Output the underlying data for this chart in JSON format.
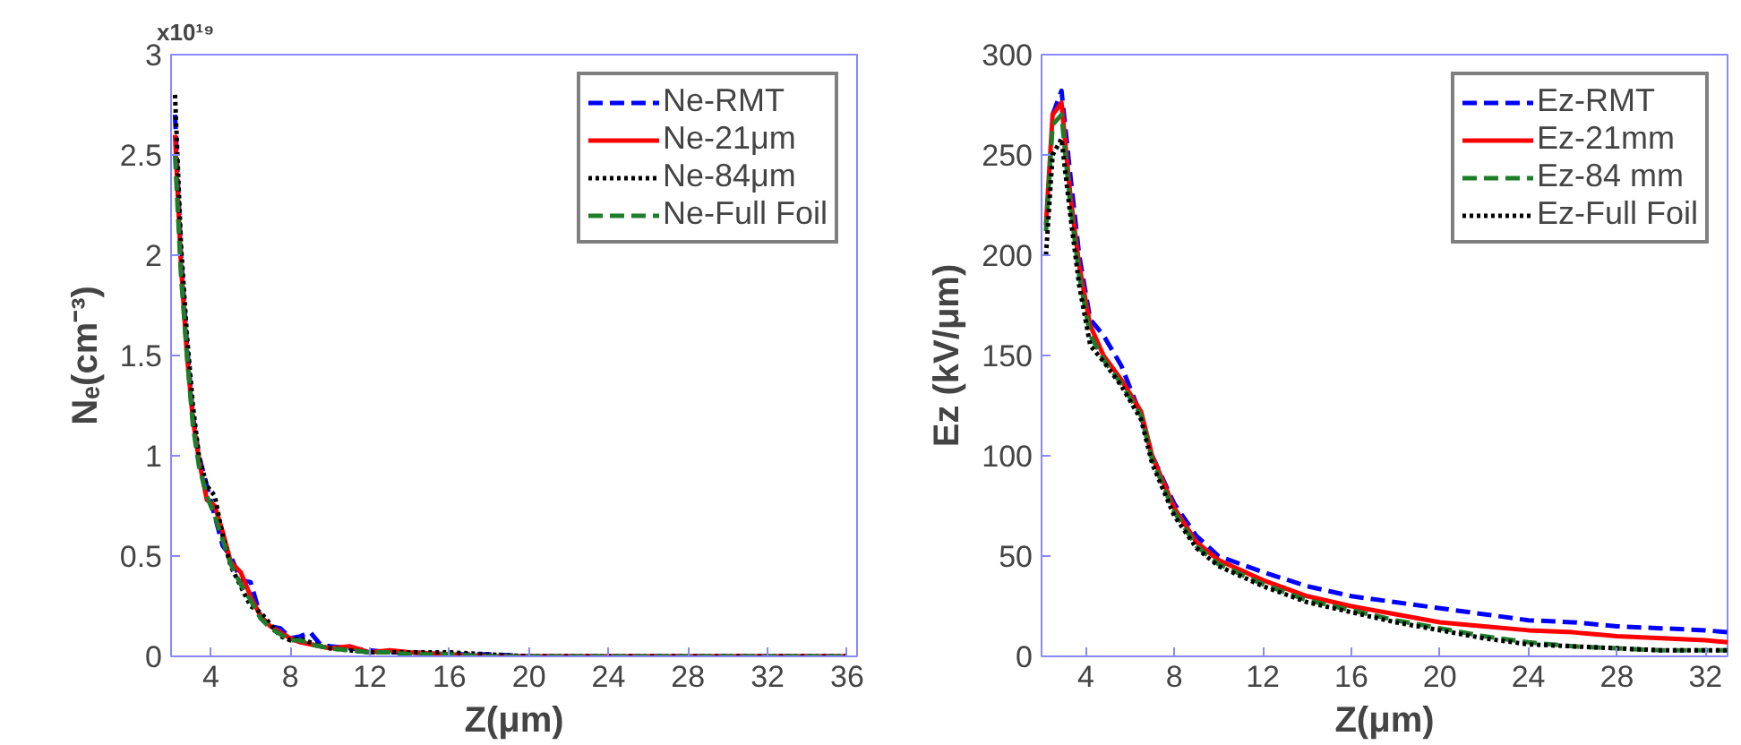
{
  "chart_data": [
    {
      "type": "line",
      "xlabel": "Z(μm)",
      "ylabel": "Nₑ(cm⁻³)",
      "annotations": [
        "x10¹⁹"
      ],
      "xlim": [
        2,
        36.5
      ],
      "xticks": [
        4,
        8,
        12,
        16,
        20,
        24,
        28,
        32,
        36
      ],
      "ylim": [
        0,
        3
      ],
      "yticks": [
        0,
        0.5,
        1,
        1.5,
        2,
        2.5,
        3
      ],
      "grid": false,
      "legend": "top right",
      "x": [
        2.2,
        2.5,
        2.8,
        3.1,
        3.4,
        3.8,
        4.2,
        4.6,
        5.0,
        5.5,
        6.0,
        6.5,
        7.0,
        7.5,
        8.0,
        8.5,
        9.0,
        9.5,
        10.0,
        11.0,
        12.0,
        13.0,
        14.0,
        16.0,
        18.0,
        20.0,
        24.0,
        28.0,
        32.0,
        36.0
      ],
      "series": [
        {
          "name": "Ne-RMT",
          "color": "#0000ff",
          "line_style": "dashed",
          "values": [
            2.7,
            2.0,
            1.55,
            1.2,
            1.0,
            0.85,
            0.7,
            0.55,
            0.5,
            0.38,
            0.37,
            0.2,
            0.15,
            0.14,
            0.09,
            0.1,
            0.12,
            0.06,
            0.05,
            0.04,
            0.03,
            0.02,
            0.02,
            0.01,
            0.01,
            0,
            0,
            0,
            0,
            0
          ]
        },
        {
          "name": "Ne-21μm",
          "color": "#ff0000",
          "line_style": "solid",
          "values": [
            2.6,
            1.95,
            1.5,
            1.18,
            0.98,
            0.78,
            0.75,
            0.62,
            0.47,
            0.42,
            0.3,
            0.2,
            0.15,
            0.12,
            0.09,
            0.07,
            0.06,
            0.05,
            0.04,
            0.05,
            0.02,
            0.03,
            0.02,
            0.01,
            0,
            0,
            0,
            0,
            0,
            0
          ]
        },
        {
          "name": "Ne-84μm",
          "color": "#000000",
          "line_style": "dotted",
          "values": [
            2.8,
            2.05,
            1.6,
            1.25,
            1.0,
            0.85,
            0.8,
            0.6,
            0.45,
            0.35,
            0.25,
            0.22,
            0.16,
            0.1,
            0.08,
            0.09,
            0.07,
            0.05,
            0.04,
            0.03,
            0.02,
            0.02,
            0.02,
            0.02,
            0.01,
            0,
            0,
            0,
            0,
            0
          ]
        },
        {
          "name": "Ne-Full Foil",
          "color": "#1e7d2a",
          "line_style": "dashed",
          "values": [
            2.5,
            1.9,
            1.5,
            1.15,
            0.95,
            0.8,
            0.7,
            0.58,
            0.46,
            0.36,
            0.28,
            0.19,
            0.14,
            0.11,
            0.08,
            0.08,
            0.06,
            0.05,
            0.04,
            0.03,
            0.02,
            0.02,
            0.01,
            0.01,
            0,
            0,
            0,
            0,
            0,
            0
          ]
        }
      ]
    },
    {
      "type": "line",
      "xlabel": "Z(μm)",
      "ylabel": "Ez (kV/μm)",
      "xlim": [
        2,
        33
      ],
      "xticks": [
        4,
        8,
        12,
        16,
        20,
        24,
        28,
        32
      ],
      "ylim": [
        0,
        300
      ],
      "yticks": [
        0,
        50,
        100,
        150,
        200,
        250,
        300
      ],
      "grid": false,
      "legend": "top right",
      "x": [
        2.2,
        2.5,
        2.9,
        3.3,
        3.7,
        4.2,
        4.8,
        5.6,
        6.5,
        7.0,
        8.0,
        9.0,
        10.0,
        12.0,
        14.0,
        16.0,
        18.0,
        20.0,
        22.0,
        24.0,
        26.0,
        28.0,
        30.0,
        32.0,
        33.0
      ],
      "series": [
        {
          "name": "Ez-RMT",
          "color": "#0000ff",
          "line_style": "dashed",
          "values": [
            null,
            270,
            282,
            240,
            200,
            168,
            160,
            145,
            120,
            100,
            76,
            60,
            50,
            42,
            35,
            30,
            27,
            24,
            21,
            18,
            17,
            15,
            14,
            13,
            12
          ]
        },
        {
          "name": "Ez-21mm",
          "color": "#ff0000",
          "line_style": "solid",
          "values": [
            215,
            270,
            276,
            230,
            195,
            165,
            150,
            138,
            122,
            100,
            74,
            57,
            48,
            38,
            30,
            25,
            21,
            17,
            15,
            13,
            12,
            10,
            9,
            8,
            7
          ]
        },
        {
          "name": "Ez-84 mm",
          "color": "#1e7d2a",
          "line_style": "dashed",
          "values": [
            212,
            265,
            270,
            225,
            190,
            160,
            148,
            136,
            120,
            98,
            72,
            55,
            46,
            36,
            28,
            23,
            18,
            14,
            10,
            7,
            5,
            4,
            3,
            3,
            3
          ]
        },
        {
          "name": "Ez-Full Foil",
          "color": "#000000",
          "line_style": "dotted",
          "values": [
            200,
            250,
            258,
            220,
            185,
            155,
            147,
            135,
            118,
            96,
            70,
            54,
            45,
            35,
            27,
            22,
            17,
            13,
            9,
            6,
            5,
            4,
            3,
            3,
            3
          ]
        }
      ]
    }
  ]
}
